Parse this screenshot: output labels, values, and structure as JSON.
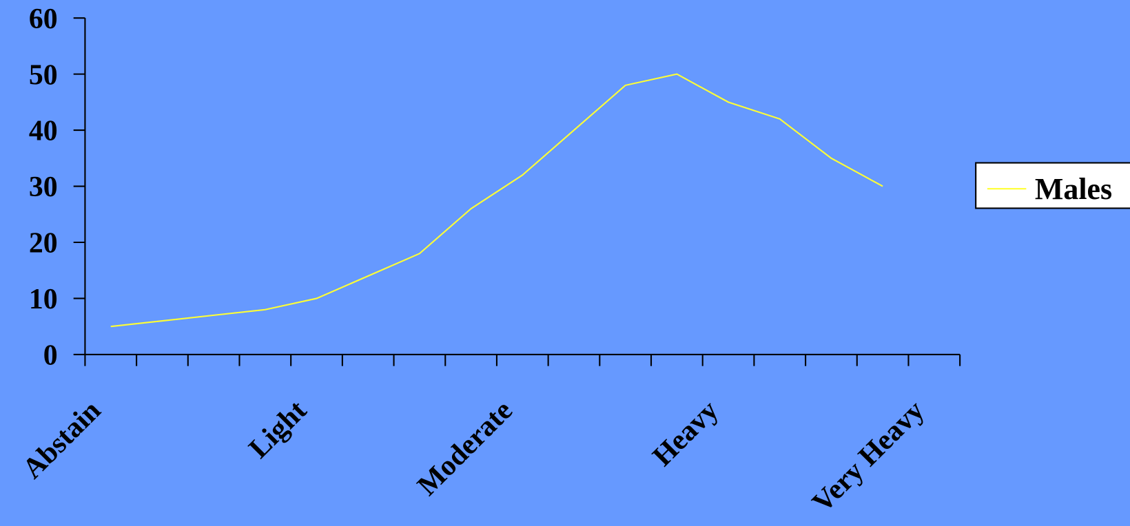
{
  "chart_data": {
    "type": "line",
    "categories": [
      "Abstain",
      null,
      null,
      null,
      "Light",
      null,
      null,
      null,
      "Moderate",
      null,
      null,
      null,
      "Heavy",
      null,
      null,
      null,
      "Very Heavy"
    ],
    "series": [
      {
        "name": "Males",
        "color": "#ffff33",
        "values": [
          5,
          6,
          7,
          8,
          10,
          14,
          18,
          26,
          32,
          40,
          48,
          50,
          45,
          42,
          35,
          30,
          null
        ]
      }
    ],
    "ylim": [
      0,
      60
    ],
    "yticks": [
      0,
      10,
      20,
      30,
      40,
      50,
      60
    ],
    "background": "#6699ff",
    "legend": "right"
  }
}
